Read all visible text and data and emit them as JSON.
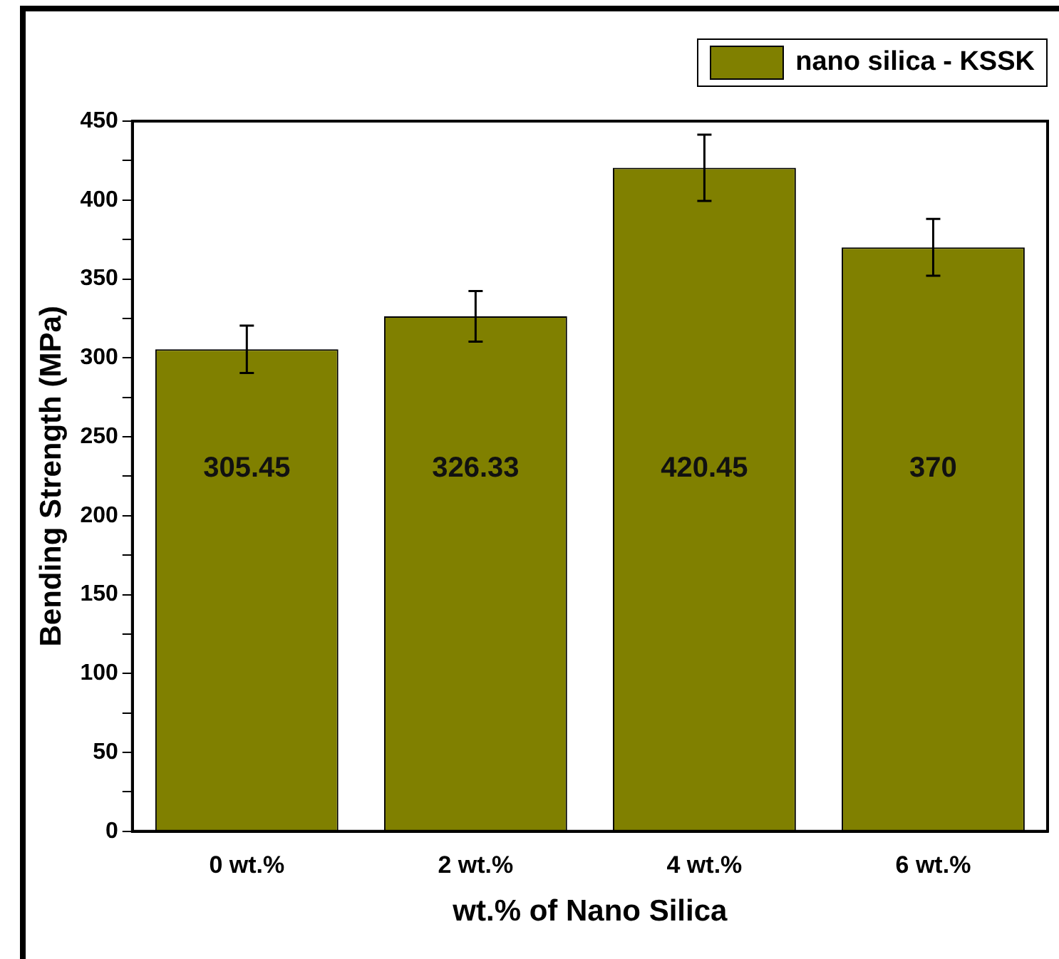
{
  "chart_data": {
    "type": "bar",
    "xlabel": "wt.% of Nano Silica",
    "ylabel": "Bending Strength (MPa)",
    "categories": [
      "0 wt.%",
      "2 wt.%",
      "4 wt.%",
      "6 wt.%"
    ],
    "series": [
      {
        "name": "nano silica - KSSK",
        "color": "#808000",
        "values": [
          305.45,
          326.33,
          420.45,
          370
        ],
        "errors": [
          15,
          16,
          21,
          18
        ],
        "value_labels": [
          "305.45",
          "326.33",
          "420.45",
          "370"
        ]
      }
    ],
    "ylim": [
      0,
      450
    ],
    "yticks": [
      0,
      {
        "value": 25,
        "label": null
      },
      50,
      {
        "value": 75,
        "label": null
      },
      100,
      {
        "value": 125,
        "label": null
      },
      150,
      {
        "value": 175,
        "label": null
      },
      200,
      {
        "value": 225,
        "label": null
      },
      250,
      {
        "value": 275,
        "label": null
      },
      300,
      {
        "value": 325,
        "label": null
      },
      350,
      {
        "value": 375,
        "label": null
      },
      400,
      {
        "value": 425,
        "label": null
      },
      450
    ],
    "grid": false,
    "legend": "top right"
  }
}
